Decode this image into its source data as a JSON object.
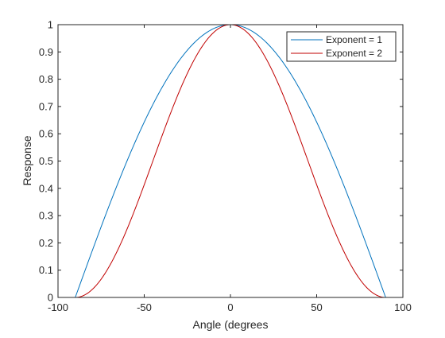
{
  "chart_data": {
    "type": "line",
    "xlabel": "Angle (degrees",
    "ylabel": "Response",
    "xlim": [
      -100,
      100
    ],
    "ylim": [
      0,
      1
    ],
    "x_ticks": [
      -100,
      -50,
      0,
      50,
      100
    ],
    "y_ticks": [
      0,
      0.1,
      0.2,
      0.3,
      0.4,
      0.5,
      0.6,
      0.7,
      0.8,
      0.9,
      1
    ],
    "x_tick_labels": [
      "-100",
      "-50",
      "0",
      "50",
      "100"
    ],
    "y_tick_labels": [
      "0",
      "0.1",
      "0.2",
      "0.3",
      "0.4",
      "0.5",
      "0.6",
      "0.7",
      "0.8",
      "0.9",
      "1"
    ],
    "grid": false,
    "legend_position": "top-right",
    "series": [
      {
        "name": "Exponent = 1",
        "color": "#0072BD",
        "x": [
          -90,
          -80,
          -70,
          -60,
          -50,
          -40,
          -30,
          -20,
          -10,
          0,
          10,
          20,
          30,
          40,
          50,
          60,
          70,
          80,
          90
        ],
        "y": [
          0,
          0.174,
          0.342,
          0.5,
          0.643,
          0.766,
          0.866,
          0.94,
          0.985,
          1,
          0.985,
          0.94,
          0.866,
          0.766,
          0.643,
          0.5,
          0.342,
          0.174,
          0
        ]
      },
      {
        "name": "Exponent = 2",
        "color": "#C00000",
        "x": [
          -90,
          -80,
          -70,
          -60,
          -50,
          -40,
          -30,
          -20,
          -10,
          0,
          10,
          20,
          30,
          40,
          50,
          60,
          70,
          80,
          90
        ],
        "y": [
          0,
          0.03,
          0.117,
          0.25,
          0.413,
          0.587,
          0.75,
          0.883,
          0.97,
          1,
          0.97,
          0.883,
          0.75,
          0.587,
          0.413,
          0.25,
          0.117,
          0.03,
          0
        ]
      }
    ]
  }
}
